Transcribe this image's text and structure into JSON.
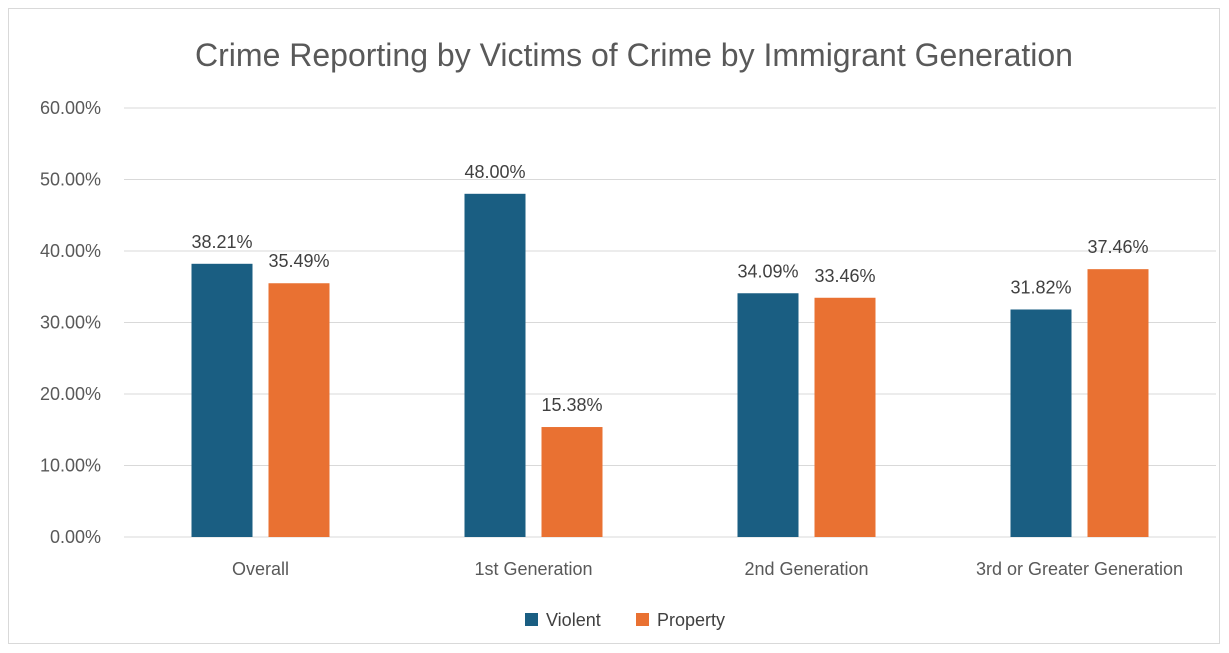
{
  "chart_data": {
    "type": "bar",
    "title": "Crime Reporting by Victims of Crime by Immigrant Generation",
    "xlabel": "",
    "ylabel": "",
    "categories": [
      "Overall",
      "1st Generation",
      "2nd Generation",
      "3rd or Greater Generation"
    ],
    "series": [
      {
        "name": "Violent",
        "color": "#1a5e82",
        "values": [
          38.21,
          48.0,
          34.09,
          31.82
        ],
        "labels": [
          "38.21%",
          "48.00%",
          "34.09%",
          "31.82%"
        ]
      },
      {
        "name": "Property",
        "color": "#e97132",
        "values": [
          35.49,
          15.38,
          33.46,
          37.46
        ],
        "labels": [
          "35.49%",
          "15.38%",
          "33.46%",
          "37.46%"
        ]
      }
    ],
    "ylim": [
      0,
      60
    ],
    "yticks": [
      0,
      10,
      20,
      30,
      40,
      50,
      60
    ],
    "ytick_labels": [
      "0.00%",
      "10.00%",
      "20.00%",
      "30.00%",
      "40.00%",
      "50.00%",
      "60.00%"
    ],
    "grid": true,
    "legend_position": "bottom"
  }
}
